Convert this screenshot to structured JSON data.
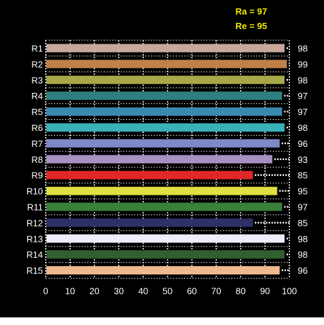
{
  "header": {
    "ra_text": "Ra = 97",
    "re_text": "Re = 95",
    "color": "#f0e600"
  },
  "chart_data": {
    "type": "bar",
    "orientation": "horizontal",
    "title": "",
    "xlabel": "",
    "ylabel": "",
    "xlim": [
      0,
      100
    ],
    "x_ticks": [
      0,
      10,
      20,
      30,
      40,
      50,
      60,
      70,
      80,
      90,
      100
    ],
    "grid": true,
    "categories": [
      "R1",
      "R2",
      "R3",
      "R4",
      "R5",
      "R6",
      "R7",
      "R8",
      "R9",
      "R10",
      "R11",
      "R12",
      "R13",
      "R14",
      "R15"
    ],
    "values": [
      98,
      99,
      98,
      97,
      97,
      98,
      96,
      93,
      85,
      95,
      97,
      85,
      98,
      98,
      96
    ],
    "colors": [
      "#c9a89a",
      "#c0804a",
      "#a8a84a",
      "#2f7f80",
      "#3a8ab0",
      "#3ab0b8",
      "#7f88c8",
      "#a890c0",
      "#e02828",
      "#e0e040",
      "#3a7f3a",
      "#303068",
      "#f0ecf8",
      "#306030",
      "#f0b890"
    ],
    "background": "#000000",
    "text_color": "#ffffff"
  }
}
